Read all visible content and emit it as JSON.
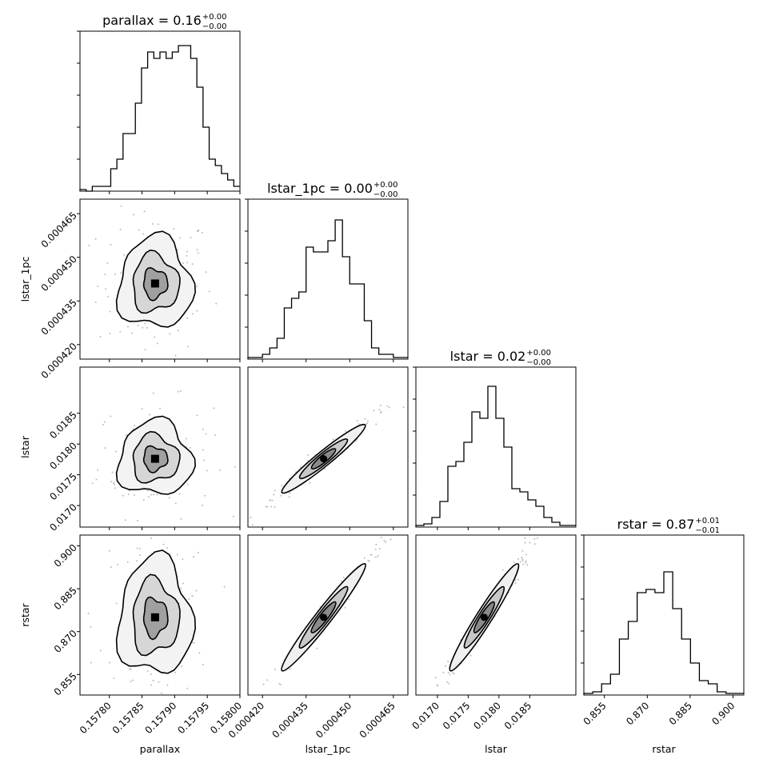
{
  "chart_data": {
    "type": "corner",
    "parameters": [
      "parallax",
      "lstar_1pc",
      "lstar",
      "rstar"
    ],
    "titles": {
      "parallax": {
        "name": "parallax",
        "value": "0.16",
        "plus": "+0.00",
        "minus": "−0.00"
      },
      "lstar_1pc": {
        "name": "lstar_1pc",
        "value": "0.00",
        "plus": "+0.00",
        "minus": "−0.00"
      },
      "lstar": {
        "name": "lstar",
        "value": "0.02",
        "plus": "+0.00",
        "minus": "−0.00"
      },
      "rstar": {
        "name": "rstar",
        "value": "0.87",
        "plus": "+0.01",
        "minus": "−0.01"
      }
    },
    "axis_labels": {
      "parallax": "parallax",
      "lstar_1pc": "lstar_1pc",
      "lstar": "lstar",
      "rstar": "rstar"
    },
    "ranges": {
      "parallax": [
        0.157755,
        0.158
      ],
      "lstar_1pc": [
        0.000415,
        0.00047
      ],
      "lstar": [
        0.01665,
        0.01925
      ],
      "rstar": [
        0.8478,
        0.9038
      ]
    },
    "ticks": {
      "parallax": [
        {
          "v": 0.1578,
          "label": "0.15780"
        },
        {
          "v": 0.15785,
          "label": "0.15785"
        },
        {
          "v": 0.1579,
          "label": "0.15790"
        },
        {
          "v": 0.15795,
          "label": "0.15795"
        },
        {
          "v": 0.158,
          "label": "0.15800"
        }
      ],
      "lstar_1pc": [
        {
          "v": 0.00042,
          "label": "0.000420"
        },
        {
          "v": 0.000435,
          "label": "0.000435"
        },
        {
          "v": 0.00045,
          "label": "0.000450"
        },
        {
          "v": 0.000465,
          "label": "0.000465"
        }
      ],
      "lstar": [
        {
          "v": 0.017,
          "label": "0.0170"
        },
        {
          "v": 0.0175,
          "label": "0.0175"
        },
        {
          "v": 0.018,
          "label": "0.0180"
        },
        {
          "v": 0.0185,
          "label": "0.0185"
        }
      ],
      "rstar": [
        {
          "v": 0.855,
          "label": "0.855"
        },
        {
          "v": 0.87,
          "label": "0.870"
        },
        {
          "v": 0.885,
          "label": "0.885"
        },
        {
          "v": 0.9,
          "label": "0.900"
        }
      ]
    },
    "histograms": {
      "parallax": [
        0.01,
        0.0,
        0.03,
        0.03,
        0.03,
        0.14,
        0.2,
        0.36,
        0.36,
        0.55,
        0.77,
        0.87,
        0.83,
        0.87,
        0.83,
        0.87,
        0.91,
        0.91,
        0.83,
        0.65,
        0.4,
        0.2,
        0.16,
        0.11,
        0.07,
        0.03
      ],
      "lstar_1pc": [
        0.01,
        0.01,
        0.03,
        0.07,
        0.13,
        0.32,
        0.38,
        0.42,
        0.7,
        0.67,
        0.67,
        0.74,
        0.87,
        0.64,
        0.47,
        0.47,
        0.24,
        0.07,
        0.03,
        0.03,
        0.01,
        0.01
      ],
      "lstar": [
        0.01,
        0.02,
        0.06,
        0.16,
        0.38,
        0.41,
        0.53,
        0.72,
        0.68,
        0.88,
        0.68,
        0.5,
        0.24,
        0.22,
        0.17,
        0.13,
        0.06,
        0.03,
        0.01,
        0.01
      ],
      "rstar": [
        0.01,
        0.02,
        0.07,
        0.13,
        0.35,
        0.46,
        0.64,
        0.66,
        0.64,
        0.77,
        0.54,
        0.35,
        0.2,
        0.09,
        0.07,
        0.02,
        0.01,
        0.01
      ]
    },
    "peaks": {
      "parallax": 0.15787,
      "lstar_1pc": 0.000441,
      "lstar": 0.01776,
      "rstar": 0.875
    },
    "spread": {
      "parallax": 2.45e-05,
      "lstar_1pc": 6.8e-06,
      "lstar": 0.000262,
      "rstar": 0.0089
    },
    "grid": false,
    "histogram_color": "#000000",
    "contour_color": "#000000"
  }
}
